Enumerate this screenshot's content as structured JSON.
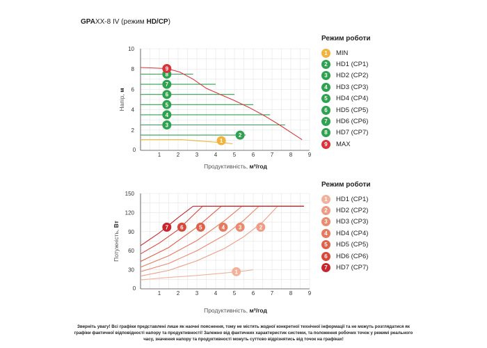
{
  "header": {
    "title_bold": "GPA",
    "title_model": "XX-8 IV",
    "title_suffix_open": " (режим ",
    "title_mode": "HD/CP",
    "title_suffix_close": ")"
  },
  "legend_top": {
    "title": "Режим роботи",
    "items": [
      {
        "num": "1",
        "label": "MIN",
        "color": "#f2b33d"
      },
      {
        "num": "2",
        "label": "HD1 (CP1)",
        "color": "#2ea24e"
      },
      {
        "num": "3",
        "label": "HD2 (CP2)",
        "color": "#2ea24e"
      },
      {
        "num": "4",
        "label": "HD3 (CP3)",
        "color": "#2ea24e"
      },
      {
        "num": "5",
        "label": "HD4 (CP4)",
        "color": "#2ea24e"
      },
      {
        "num": "6",
        "label": "HD5 (CP5)",
        "color": "#2ea24e"
      },
      {
        "num": "7",
        "label": "HD6 (CP6)",
        "color": "#2ea24e"
      },
      {
        "num": "8",
        "label": "HD7 (CP7)",
        "color": "#2ea24e"
      },
      {
        "num": "9",
        "label": "MAX",
        "color": "#d9343a"
      }
    ]
  },
  "legend_bottom": {
    "title": "Режим роботи",
    "items": [
      {
        "num": "1",
        "label": "HD1 (CP1)",
        "color": "#f2b19a"
      },
      {
        "num": "2",
        "label": "HD2 (CP2)",
        "color": "#ee9c85"
      },
      {
        "num": "3",
        "label": "HD3 (CP3)",
        "color": "#ea8a6f"
      },
      {
        "num": "4",
        "label": "HD4 (CP4)",
        "color": "#e67a5e"
      },
      {
        "num": "5",
        "label": "HD5 (CP5)",
        "color": "#e0614a"
      },
      {
        "num": "6",
        "label": "HD6 (CP6)",
        "color": "#d9473a"
      },
      {
        "num": "7",
        "label": "HD7 (CP7)",
        "color": "#c8252c"
      }
    ]
  },
  "notice": "Зверніть увагу! Всі графіки представлені лише як наочні пояснення, тому не містять жодної конкретної технічної інформації та не можуть розглядатися як графіки фактичної відповідності напору та продуктивності! Залежно від фактичних характеристик системи, та положення робочих точок у режимі реального часу, значення напору та продуктивності можуть суттєво відрізнятись від точок на графіках!",
  "chart_data": [
    {
      "type": "line",
      "ylabel_pre": "Напір, ",
      "ylabel_unit": "м",
      "xlabel_pre": "Продуктивність, ",
      "xlabel_unit": "м³/год",
      "xlim": [
        0,
        9
      ],
      "ylim": [
        0,
        10
      ],
      "x_ticks": [
        "0",
        "1",
        "2",
        "3",
        "4",
        "5",
        "6",
        "7",
        "8",
        "9"
      ],
      "y_ticks": [
        "2",
        "4",
        "6",
        "8",
        "10"
      ],
      "grid": true,
      "series": [
        {
          "name": "MIN",
          "color": "#f2b33d",
          "points": [
            [
              0,
              1.05
            ],
            [
              2.2,
              1.05
            ],
            [
              4.4,
              0.75
            ],
            [
              4.9,
              0.65
            ]
          ],
          "marker": {
            "label": "1",
            "x": 4.3,
            "y": 0.95
          }
        },
        {
          "name": "HD1 (CP1)",
          "color": "#2ea24e",
          "points": [
            [
              0,
              1.5
            ],
            [
              5.6,
              1.5
            ]
          ],
          "marker": {
            "label": "2",
            "x": 5.3,
            "y": 1.5
          }
        },
        {
          "name": "HD2 (CP2)",
          "color": "#2ea24e",
          "points": [
            [
              0,
              2.5
            ],
            [
              7.7,
              2.5
            ]
          ],
          "marker": {
            "label": "3",
            "x": 1.4,
            "y": 2.5
          }
        },
        {
          "name": "HD3 (CP3)",
          "color": "#2ea24e",
          "points": [
            [
              0,
              3.5
            ],
            [
              6.9,
              3.5
            ]
          ],
          "marker": {
            "label": "4",
            "x": 1.4,
            "y": 3.5
          }
        },
        {
          "name": "HD4 (CP4)",
          "color": "#2ea24e",
          "points": [
            [
              0,
              4.5
            ],
            [
              6.0,
              4.5
            ]
          ],
          "marker": {
            "label": "5",
            "x": 1.4,
            "y": 4.5
          }
        },
        {
          "name": "HD5 (CP5)",
          "color": "#2ea24e",
          "points": [
            [
              0,
              5.5
            ],
            [
              5.0,
              5.5
            ]
          ],
          "marker": {
            "label": "6",
            "x": 1.4,
            "y": 5.5
          }
        },
        {
          "name": "HD6 (CP6)",
          "color": "#2ea24e",
          "points": [
            [
              0,
              6.5
            ],
            [
              4.0,
              6.5
            ]
          ],
          "marker": {
            "label": "7",
            "x": 1.4,
            "y": 6.5
          }
        },
        {
          "name": "HD7 (CP7)",
          "color": "#2ea24e",
          "points": [
            [
              0,
              7.5
            ],
            [
              2.8,
              7.5
            ]
          ],
          "marker": {
            "label": "8",
            "x": 1.4,
            "y": 7.5
          }
        },
        {
          "name": "MAX",
          "color": "#d9343a",
          "points": [
            [
              0,
              8.15
            ],
            [
              1.4,
              8.05
            ],
            [
              2.1,
              7.7
            ],
            [
              2.8,
              7.0
            ],
            [
              3.5,
              6.1
            ],
            [
              4.3,
              5.45
            ],
            [
              5.0,
              4.9
            ],
            [
              5.8,
              4.2
            ],
            [
              6.6,
              3.4
            ],
            [
              7.4,
              2.5
            ],
            [
              8.1,
              1.65
            ],
            [
              8.6,
              1.05
            ]
          ],
          "marker": {
            "label": "9",
            "x": 1.4,
            "y": 8.05
          }
        }
      ]
    },
    {
      "type": "line",
      "ylabel_pre": "Потужність, ",
      "ylabel_unit": "Вт",
      "xlabel_pre": "Продуктивність, ",
      "xlabel_unit": "м³/год",
      "xlim": [
        0,
        9
      ],
      "ylim": [
        0,
        150
      ],
      "x_ticks": [
        "0",
        "1",
        "2",
        "3",
        "4",
        "5",
        "6",
        "7",
        "8",
        "9"
      ],
      "y_ticks": [
        "30",
        "60",
        "90",
        "120",
        "150"
      ],
      "grid": true,
      "series": [
        {
          "name": "HD1 (CP1)",
          "color": "#f2b19a",
          "points": [
            [
              0,
              14
            ],
            [
              1.5,
              18
            ],
            [
              3.0,
              21
            ],
            [
              4.5,
              25
            ],
            [
              5.5,
              28
            ],
            [
              6.0,
              30
            ]
          ],
          "marker": {
            "label": "1",
            "x": 5.1,
            "y": 27
          }
        },
        {
          "name": "HD2 (CP2)",
          "color": "#ee9c85",
          "points": [
            [
              0,
              20
            ],
            [
              1.5,
              29
            ],
            [
              3.0,
              44
            ],
            [
              4.5,
              64
            ],
            [
              5.5,
              82
            ],
            [
              6.5,
              105
            ],
            [
              7.3,
              130
            ],
            [
              8.7,
              130
            ]
          ],
          "marker": {
            "label": "2",
            "x": 6.4,
            "y": 97
          }
        },
        {
          "name": "HD3 (CP3)",
          "color": "#ea8a6f",
          "points": [
            [
              0,
              27
            ],
            [
              1.5,
              40
            ],
            [
              3.0,
              60
            ],
            [
              4.5,
              85
            ],
            [
              5.5,
              108
            ],
            [
              6.3,
              130
            ],
            [
              8.7,
              130
            ]
          ],
          "marker": {
            "label": "3",
            "x": 5.3,
            "y": 97
          }
        },
        {
          "name": "HD4 (CP4)",
          "color": "#e67a5e",
          "points": [
            [
              0,
              34
            ],
            [
              1.5,
              52
            ],
            [
              3.0,
              76
            ],
            [
              4.5,
              108
            ],
            [
              5.4,
              130
            ],
            [
              8.7,
              130
            ]
          ],
          "marker": {
            "label": "4",
            "x": 4.4,
            "y": 97
          }
        },
        {
          "name": "HD5 (CP5)",
          "color": "#e0614a",
          "points": [
            [
              0,
              43
            ],
            [
              1.5,
              65
            ],
            [
              3.0,
              97
            ],
            [
              4.3,
              130
            ],
            [
              8.7,
              130
            ]
          ],
          "marker": {
            "label": "5",
            "x": 3.2,
            "y": 97
          }
        },
        {
          "name": "HD6 (CP6)",
          "color": "#d9473a",
          "points": [
            [
              0,
              55
            ],
            [
              1.0,
              72
            ],
            [
              2.0,
              93
            ],
            [
              3.3,
              130
            ],
            [
              8.7,
              130
            ]
          ],
          "marker": {
            "label": "6",
            "x": 2.2,
            "y": 97
          }
        },
        {
          "name": "HD7 (CP7)",
          "color": "#c8252c",
          "points": [
            [
              0,
              68
            ],
            [
              1.0,
              88
            ],
            [
              2.0,
              112
            ],
            [
              2.8,
              130
            ],
            [
              8.7,
              130
            ]
          ],
          "marker": {
            "label": "7",
            "x": 1.4,
            "y": 97
          }
        }
      ]
    }
  ]
}
